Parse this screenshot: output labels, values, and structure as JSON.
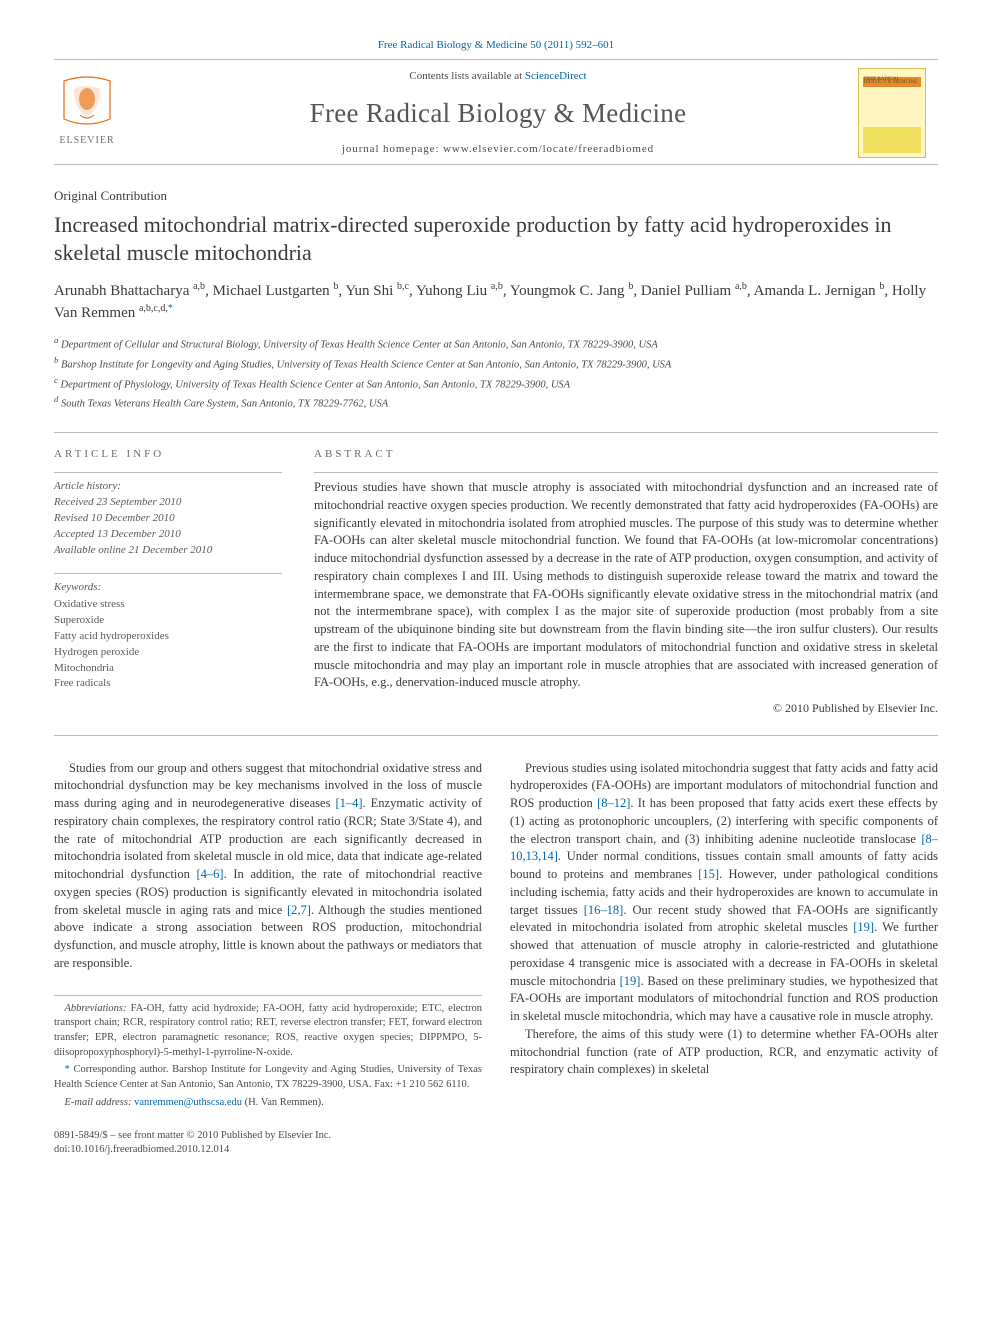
{
  "top_link": "Free Radical Biology & Medicine 50 (2011) 592–601",
  "header": {
    "contents_prefix": "Contents lists available at ",
    "contents_link": "ScienceDirect",
    "journal_title": "Free Radical Biology & Medicine",
    "homepage": "journal homepage: www.elsevier.com/locate/freeradbiomed",
    "cover_label_top": "FREE RADICAL BIOLOGY & MEDICINE"
  },
  "article_type": "Original Contribution",
  "title": "Increased mitochondrial matrix-directed superoxide production by fatty acid hydroperoxides in skeletal muscle mitochondria",
  "authors_html_parts": [
    {
      "name": "Arunabh Bhattacharya",
      "aff": "a,b"
    },
    {
      "name": "Michael Lustgarten",
      "aff": "b"
    },
    {
      "name": "Yun Shi",
      "aff": "b,c"
    },
    {
      "name": "Yuhong Liu",
      "aff": "a,b"
    },
    {
      "name": "Youngmok C. Jang",
      "aff": "b"
    },
    {
      "name": "Daniel Pulliam",
      "aff": "a,b"
    },
    {
      "name": "Amanda L. Jernigan",
      "aff": "b"
    },
    {
      "name": "Holly Van Remmen",
      "aff": "a,b,c,d,*"
    }
  ],
  "affiliations": [
    {
      "key": "a",
      "text": "Department of Cellular and Structural Biology, University of Texas Health Science Center at San Antonio, San Antonio, TX 78229-3900, USA"
    },
    {
      "key": "b",
      "text": "Barshop Institute for Longevity and Aging Studies, University of Texas Health Science Center at San Antonio, San Antonio, TX 78229-3900, USA"
    },
    {
      "key": "c",
      "text": "Department of Physiology, University of Texas Health Science Center at San Antonio, San Antonio, TX 78229-3900, USA"
    },
    {
      "key": "d",
      "text": "South Texas Veterans Health Care System, San Antonio, TX 78229-7762, USA"
    }
  ],
  "article_info": {
    "heading": "ARTICLE INFO",
    "history_label": "Article history:",
    "received": "Received 23 September 2010",
    "revised": "Revised 10 December 2010",
    "accepted": "Accepted 13 December 2010",
    "online": "Available online 21 December 2010",
    "keywords_label": "Keywords:",
    "keywords": [
      "Oxidative stress",
      "Superoxide",
      "Fatty acid hydroperoxides",
      "Hydrogen peroxide",
      "Mitochondria",
      "Free radicals"
    ]
  },
  "abstract": {
    "heading": "ABSTRACT",
    "text": "Previous studies have shown that muscle atrophy is associated with mitochondrial dysfunction and an increased rate of mitochondrial reactive oxygen species production. We recently demonstrated that fatty acid hydroperoxides (FA-OOHs) are significantly elevated in mitochondria isolated from atrophied muscles. The purpose of this study was to determine whether FA-OOHs can alter skeletal muscle mitochondrial function. We found that FA-OOHs (at low-micromolar concentrations) induce mitochondrial dysfunction assessed by a decrease in the rate of ATP production, oxygen consumption, and activity of respiratory chain complexes I and III. Using methods to distinguish superoxide release toward the matrix and toward the intermembrane space, we demonstrate that FA-OOHs significantly elevate oxidative stress in the mitochondrial matrix (and not the intermembrane space), with complex I as the major site of superoxide production (most probably from a site upstream of the ubiquinone binding site but downstream from the flavin binding site—the iron sulfur clusters). Our results are the first to indicate that FA-OOHs are important modulators of mitochondrial function and oxidative stress in skeletal muscle mitochondria and may play an important role in muscle atrophies that are associated with increased generation of FA-OOHs, e.g., denervation-induced muscle atrophy.",
    "copyright": "© 2010 Published by Elsevier Inc."
  },
  "body": {
    "col1_p1_a": "Studies from our group and others suggest that mitochondrial oxidative stress and mitochondrial dysfunction may be key mechanisms involved in the loss of muscle mass during aging and in neurodegenerative diseases ",
    "col1_ref1": "[1–4]",
    "col1_p1_b": ". Enzymatic activity of respiratory chain complexes, the respiratory control ratio (RCR; State 3/State 4), and the rate of mitochondrial ATP production are each significantly decreased in mitochondria isolated from skeletal muscle in old mice, data that indicate age-related mitochondrial dysfunction ",
    "col1_ref2": "[4–6]",
    "col1_p1_c": ". In addition, the rate of mitochondrial reactive oxygen species (ROS) production is significantly elevated in mitochondria isolated from skeletal muscle in aging rats and mice ",
    "col1_ref3": "[2,7]",
    "col1_p1_d": ". Although the studies mentioned above indicate a strong association between ROS production, mitochondrial dysfunction, and muscle atrophy, little is known about the pathways or mediators that are responsible.",
    "col2_p1_a": "Previous studies using isolated mitochondria suggest that fatty acids and fatty acid hydroperoxides (FA-OOHs) are important modulators of mitochondrial function and ROS production ",
    "col2_ref1": "[8–12]",
    "col2_p1_b": ". It has been proposed that fatty acids exert these effects by (1) acting as protonophoric uncouplers, (2) interfering with specific components of the electron transport chain, and (3) inhibiting adenine nucleotide translocase ",
    "col2_ref2": "[8–10,13,14]",
    "col2_p1_c": ". Under normal conditions, tissues contain small amounts of fatty acids bound to proteins and membranes ",
    "col2_ref3": "[15]",
    "col2_p1_d": ". However, under pathological conditions including ischemia, fatty acids and their hydroperoxides are known to accumulate in target tissues ",
    "col2_ref4": "[16–18]",
    "col2_p1_e": ". Our recent study showed that FA-OOHs are significantly elevated in mitochondria isolated from atrophic skeletal muscles ",
    "col2_ref5": "[19]",
    "col2_p1_f": ". We further showed that attenuation of muscle atrophy in calorie-restricted and glutathione peroxidase 4 transgenic mice is associated with a decrease in FA-OOHs in skeletal muscle mitochondria ",
    "col2_ref6": "[19]",
    "col2_p1_g": ". Based on these preliminary studies, we hypothesized that FA-OOHs are important modulators of mitochondrial function and ROS production in skeletal muscle mitochondria, which may have a causative role in muscle atrophy.",
    "col2_p2": "Therefore, the aims of this study were (1) to determine whether FA-OOHs alter mitochondrial function (rate of ATP production, RCR, and enzymatic activity of respiratory chain complexes) in skeletal"
  },
  "footnotes": {
    "abbrev_label": "Abbreviations:",
    "abbrev_text": " FA-OH, fatty acid hydroxide; FA-OOH, fatty acid hydroperoxide; ETC, electron transport chain; RCR, respiratory control ratio; RET, reverse electron transfer; FET, forward electron transfer; EPR, electron paramagnetic resonance; ROS, reactive oxygen species; DIPPMPO, 5-diisopropoxyphosphoryl)-5-methyl-1-pyrroline-N-oxide.",
    "corr_label": "* ",
    "corr_text": "Corresponding author. Barshop Institute for Longevity and Aging Studies, University of Texas Health Science Center at San Antonio, San Antonio, TX 78229-3900, USA. Fax: +1 210 562 6110.",
    "email_label": "E-mail address: ",
    "email": "vanremmen@uthscsa.edu",
    "email_suffix": " (H. Van Remmen)."
  },
  "bottom": {
    "line1": "0891-5849/$ – see front matter © 2010 Published by Elsevier Inc.",
    "line2": "doi:10.1016/j.freeradbiomed.2010.12.014"
  },
  "colors": {
    "link": "#0066aa",
    "text": "#3b3b3b",
    "rule": "#bcbcbc",
    "elsevier_orange": "#eb6b0b",
    "cover_bg": "#fff6c2"
  }
}
